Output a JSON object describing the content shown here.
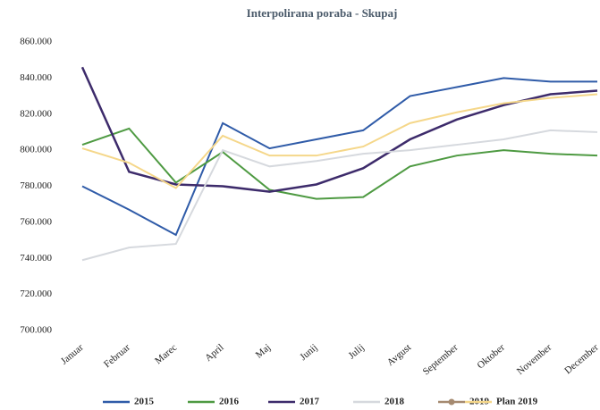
{
  "chart_data": {
    "type": "line",
    "title": "Interpolirana poraba - Skupaj",
    "categories": [
      "Januar",
      "Februar",
      "Marec",
      "April",
      "Maj",
      "Junij",
      "Julij",
      "Avgust",
      "September",
      "Oktober",
      "November",
      "December"
    ],
    "ylim": [
      700000,
      860000
    ],
    "yticks": [
      {
        "value": 700000,
        "label": "700.000"
      },
      {
        "value": 720000,
        "label": "720.000"
      },
      {
        "value": 740000,
        "label": "740.000"
      },
      {
        "value": 760000,
        "label": "760.000"
      },
      {
        "value": 780000,
        "label": "780.000"
      },
      {
        "value": 800000,
        "label": "800.000"
      },
      {
        "value": 820000,
        "label": "820.000"
      },
      {
        "value": 840000,
        "label": "840.000"
      },
      {
        "value": 860000,
        "label": "860.000"
      }
    ],
    "grid": false,
    "legend": "bottom",
    "series": [
      {
        "name": "2015",
        "color": "#2f5ba8",
        "values": [
          780000,
          767000,
          753000,
          815000,
          801000,
          806000,
          811000,
          830000,
          835000,
          840000,
          838000,
          838000
        ]
      },
      {
        "name": "2016",
        "color": "#4e9a42",
        "values": [
          803000,
          812000,
          782000,
          799000,
          778000,
          773000,
          774000,
          791000,
          797000,
          800000,
          798000,
          797000
        ]
      },
      {
        "name": "2017",
        "color": "#3d2b6b",
        "values": [
          846000,
          788000,
          781000,
          780000,
          777000,
          781000,
          790000,
          806000,
          817000,
          825000,
          831000,
          833000
        ]
      },
      {
        "name": "2018",
        "color": "#d6d9de",
        "values": [
          739000,
          746000,
          748000,
          800000,
          791000,
          794000,
          798000,
          800000,
          803000,
          806000,
          811000,
          810000
        ]
      },
      {
        "name": "2019",
        "color": "#a58a70",
        "values": [
          null,
          null,
          null,
          null,
          null,
          null,
          null,
          null,
          null,
          null,
          null,
          null
        ]
      },
      {
        "name": "Plan 2019",
        "color": "#f5d78a",
        "values": [
          801000,
          793000,
          779000,
          808000,
          797000,
          797000,
          802000,
          815000,
          821000,
          826000,
          829000,
          831000
        ]
      }
    ]
  }
}
